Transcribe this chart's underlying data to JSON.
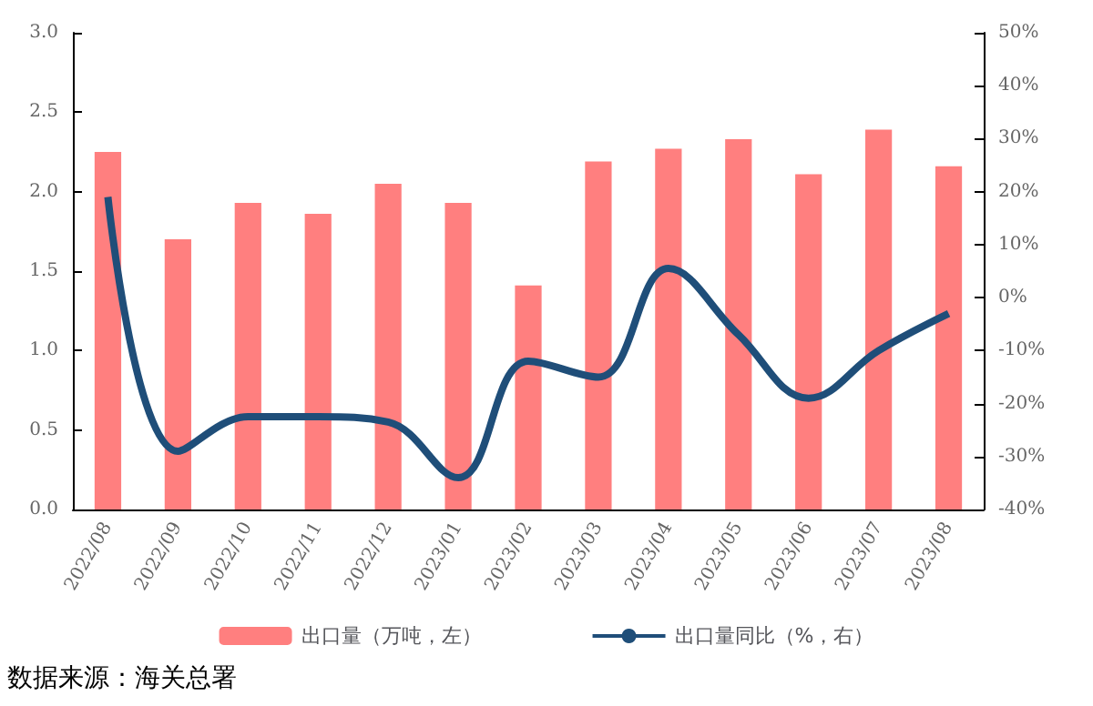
{
  "chart_data": {
    "type": "bar",
    "categories": [
      "2022/08",
      "2022/09",
      "2022/10",
      "2022/11",
      "2022/12",
      "2023/01",
      "2023/02",
      "2023/03",
      "2023/04",
      "2023/05",
      "2023/06",
      "2023/07",
      "2023/08"
    ],
    "series": [
      {
        "name": "出口量（万吨，左）",
        "color": "#ff7f7f",
        "values": [
          2.25,
          1.7,
          1.93,
          1.86,
          2.05,
          1.93,
          1.41,
          2.19,
          2.27,
          2.33,
          2.11,
          2.39,
          2.16
        ]
      },
      {
        "name": "出口量同比（%，右）",
        "type": "line",
        "axis": "y2",
        "color": "#1f4e79",
        "values": [
          19,
          -29,
          -22.5,
          -22.5,
          -23.5,
          -34,
          -12,
          -15,
          5.5,
          -7,
          -19,
          -10,
          -3
        ]
      }
    ],
    "ylim": [
      0,
      3
    ],
    "yticks": [
      {
        "value": 0,
        "label": "0.0"
      },
      {
        "value": 0.5,
        "label": "0.5"
      },
      {
        "value": 1,
        "label": "1.0"
      },
      {
        "value": 1.5,
        "label": "1.5"
      },
      {
        "value": 2,
        "label": "2.0"
      },
      {
        "value": 2.5,
        "label": "2.5"
      },
      {
        "value": 3,
        "label": "3.0"
      }
    ],
    "y2lim": [
      -40,
      50
    ],
    "y2ticks": [
      {
        "value": -40,
        "label": "-40%"
      },
      {
        "value": -30,
        "label": "-30%"
      },
      {
        "value": -20,
        "label": "-20%"
      },
      {
        "value": -10,
        "label": "-10%"
      },
      {
        "value": 0,
        "label": "0%"
      },
      {
        "value": 10,
        "label": "10%"
      },
      {
        "value": 20,
        "label": "20%"
      },
      {
        "value": 30,
        "label": "30%"
      },
      {
        "value": 40,
        "label": "40%"
      },
      {
        "value": 50,
        "label": "50%"
      }
    ],
    "legend": "bottom",
    "grid": false,
    "marker": "none",
    "annotations": [
      "数据来源：海关总署"
    ]
  }
}
